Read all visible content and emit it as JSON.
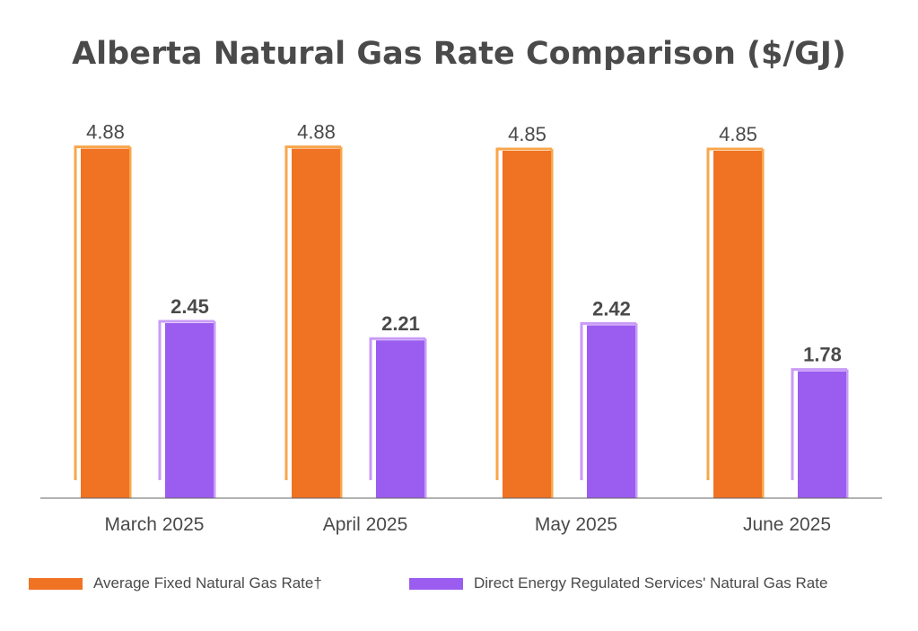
{
  "title": "Alberta Natural Gas Rate Comparison ($/GJ)",
  "colors": {
    "fixed_bar": "#f07223",
    "fixed_outline": "#f8a64b",
    "regulated_bar": "#9b5cf0",
    "regulated_outline": "#c99bf7",
    "text": "#4a4a4a",
    "axis": "#666666"
  },
  "legend": {
    "fixed_label": "Average Fixed Natural Gas Rate†",
    "regulated_label": "Direct Energy Regulated Services' Natural Gas Rate"
  },
  "chart_data": {
    "type": "bar",
    "title": "Alberta Natural Gas Rate Comparison ($/GJ)",
    "categories": [
      "March 2025",
      "April 2025",
      "May 2025",
      "June 2025"
    ],
    "series": [
      {
        "name": "Average Fixed Natural Gas Rate†",
        "values": [
          4.88,
          4.88,
          4.85,
          4.85
        ],
        "labels": [
          "4.88",
          "4.88",
          "4.85",
          "4.85"
        ],
        "label_weight": "normal"
      },
      {
        "name": "Direct Energy Regulated Services' Natural Gas Rate",
        "values": [
          2.45,
          2.21,
          2.42,
          1.78
        ],
        "labels": [
          "2.45",
          "2.21",
          "2.42",
          "1.78"
        ],
        "label_weight": "bold"
      }
    ],
    "xlabel": "",
    "ylabel": "",
    "ylim": [
      0,
      5
    ],
    "grid": false,
    "legend_position": "bottom"
  }
}
